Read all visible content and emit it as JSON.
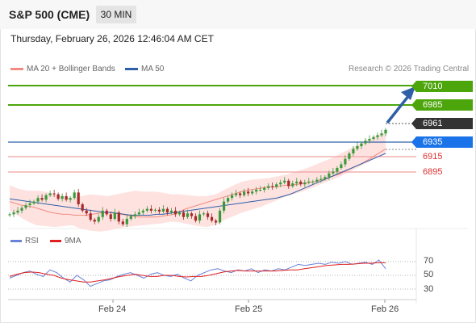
{
  "header": {
    "symbol": "S&P 500 (CME)",
    "timeframe": "30 MIN"
  },
  "datetime": "Thursday, February 26, 2026 12:46:04 AM CET",
  "legend": [
    {
      "label": "MA 20 + Bollinger Bands",
      "color": "#f28b82"
    },
    {
      "label": "MA 50",
      "color": "#2f5fa8"
    }
  ],
  "credit": "Research © 2026 Trading Central",
  "levels": [
    {
      "value": "7010",
      "color": "#4ca50a",
      "style": "filled"
    },
    {
      "value": "6985",
      "color": "#4ca50a",
      "style": "filled"
    },
    {
      "value": "6961",
      "color": "#333333",
      "style": "filled"
    },
    {
      "value": "6935",
      "color": "#1a73e8",
      "style": "filled"
    },
    {
      "value": "6915",
      "color": "#e03030",
      "style": "text"
    },
    {
      "value": "6895",
      "color": "#e03030",
      "style": "text"
    }
  ],
  "rsi_legend": [
    {
      "label": "RSI",
      "color": "#6a82d8"
    },
    {
      "label": "9MA",
      "color": "#e02020"
    }
  ],
  "rsi_ticks": [
    "70",
    "50",
    "30"
  ],
  "x_axis": {
    "labels": [
      "Feb 24",
      "Feb 25",
      "Feb 26"
    ]
  },
  "chart_data": {
    "type": "candlestick",
    "y_axis": {
      "min": 6855,
      "max": 7015
    },
    "x_labels": [
      "Feb 24",
      "Feb 25",
      "Feb 26"
    ],
    "closes": [
      6868,
      6870,
      6872,
      6875,
      6878,
      6880,
      6882,
      6886,
      6884,
      6889,
      6891,
      6890,
      6885,
      6888,
      6884,
      6886,
      6892,
      6879,
      6872,
      6869,
      6862,
      6860,
      6865,
      6872,
      6868,
      6863,
      6870,
      6860,
      6857,
      6863,
      6866,
      6868,
      6870,
      6872,
      6874,
      6872,
      6873,
      6871,
      6874,
      6870,
      6872,
      6868,
      6870,
      6865,
      6869,
      6866,
      6861,
      6868,
      6869,
      6865,
      6861,
      6859,
      6872,
      6882,
      6886,
      6889,
      6891,
      6889,
      6893,
      6891,
      6893,
      6895,
      6895,
      6897,
      6899,
      6898,
      6901,
      6903,
      6905,
      6899,
      6902,
      6904,
      6901,
      6903,
      6904,
      6904,
      6906,
      6907,
      6909,
      6913,
      6915,
      6919,
      6923,
      6929,
      6935,
      6940,
      6943,
      6946,
      6949,
      6951,
      6953,
      6955,
      6957,
      6961
    ],
    "ma20": [
      6882,
      6880,
      6878,
      6877,
      6876,
      6874,
      6872,
      6870,
      6869,
      6868,
      6868,
      6867,
      6867,
      6867,
      6868,
      6869,
      6870,
      6870,
      6869,
      6868,
      6867,
      6866,
      6865,
      6865,
      6865,
      6865,
      6866,
      6867,
      6868,
      6871,
      6874,
      6876,
      6878,
      6880,
      6882,
      6884,
      6886,
      6888,
      6890,
      6892,
      6894,
      6895,
      6896,
      6897,
      6898,
      6898,
      6899,
      6900,
      6900,
      6901,
      6902,
      6903,
      6904,
      6906,
      6908,
      6910,
      6912,
      6915,
      6918,
      6921,
      6924,
      6928,
      6932,
      6936,
      6940
    ],
    "ma50": [
      6885,
      6884,
      6883,
      6882,
      6881,
      6880,
      6879,
      6878,
      6877,
      6876,
      6875,
      6874,
      6873,
      6872,
      6871,
      6870,
      6870,
      6869,
      6868,
      6867,
      6867,
      6867,
      6867,
      6868,
      6868,
      6869,
      6870,
      6871,
      6872,
      6873,
      6874,
      6875,
      6876,
      6877,
      6878,
      6879,
      6880,
      6881,
      6882,
      6883,
      6884,
      6885,
      6886,
      6888,
      6890,
      6893,
      6896,
      6899,
      6902,
      6905,
      6908,
      6911,
      6914,
      6917,
      6920,
      6923,
      6926,
      6929,
      6932,
      6935
    ],
    "bb_upper": [
      6900,
      6896,
      6894,
      6894,
      6893,
      6890,
      6888,
      6886,
      6888,
      6890,
      6889,
      6888,
      6890,
      6892,
      6894,
      6893,
      6893,
      6892,
      6890,
      6890,
      6889,
      6888,
      6888,
      6890,
      6895,
      6900,
      6904,
      6906,
      6907,
      6908,
      6910,
      6912,
      6915,
      6918,
      6922,
      6926,
      6930,
      6935,
      6940,
      6945,
      6950,
      6955,
      6958
    ],
    "bb_lower": [
      6872,
      6866,
      6860,
      6856,
      6855,
      6854,
      6855,
      6856,
      6852,
      6850,
      6849,
      6850,
      6852,
      6854,
      6855,
      6856,
      6857,
      6858,
      6860,
      6859,
      6857,
      6855,
      6854,
      6856,
      6862,
      6866,
      6870,
      6873,
      6876,
      6880,
      6884,
      6888,
      6891,
      6894,
      6898,
      6902,
      6906,
      6910,
      6915,
      6920,
      6925,
      6930,
      6935
    ],
    "rsi": [
      45,
      50,
      55,
      58,
      52,
      48,
      60,
      55,
      45,
      38,
      50,
      42,
      30,
      35,
      40,
      42,
      48,
      52,
      55,
      50,
      45,
      52,
      55,
      50,
      48,
      52,
      45,
      40,
      50,
      55,
      60,
      62,
      58,
      55,
      60,
      58,
      62,
      55,
      60,
      58,
      62,
      60,
      65,
      70,
      68,
      70,
      72,
      70,
      74,
      72,
      75,
      70,
      72,
      74,
      70,
      78,
      62
    ],
    "rsi_9ma": [
      48,
      52,
      55,
      56,
      55,
      52,
      50,
      45,
      42,
      40,
      38,
      38,
      40,
      42,
      45,
      48,
      50,
      52,
      50,
      48,
      48,
      50,
      50,
      48,
      47,
      48,
      48,
      50,
      53,
      56,
      58,
      59,
      58,
      58,
      58,
      58,
      58,
      59,
      60,
      60,
      62,
      64,
      66,
      68,
      69,
      70,
      70,
      71,
      72,
      72,
      73,
      73
    ]
  }
}
